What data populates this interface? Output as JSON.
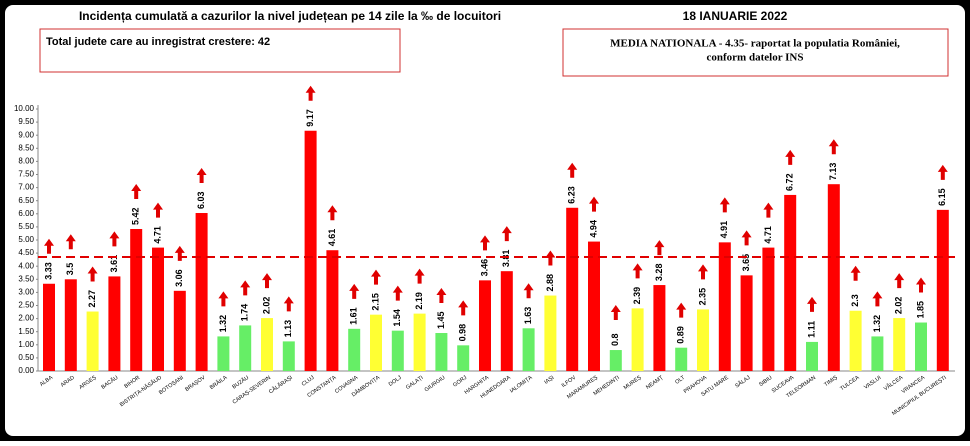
{
  "chart_data": {
    "type": "bar",
    "title": "Incidența cumulată a cazurilor la nivel județean pe 14 zile la ‰ de locuitori",
    "date": "18 IANUARIE 2022",
    "increase_note": "Total judete care au inregistrat crestere: 42",
    "mean_note": [
      "MEDIA NATIONALA - 4.35-  raportat la populatia României,",
      "conform datelor INS"
    ],
    "reference_line": 4.35,
    "categories": [
      "ALBA",
      "ARAD",
      "ARGEȘ",
      "BACĂU",
      "BIHOR",
      "BISTRIȚA-NĂSĂUD",
      "BOTOȘANI",
      "BRAȘOV",
      "BRĂILA",
      "BUZĂU",
      "CARAȘ-SEVERIN",
      "CĂLĂRAȘI",
      "CLUJ",
      "CONSTANȚA",
      "COVASNA",
      "DÂMBOVIȚA",
      "DOLJ",
      "GALAȚI",
      "GIURGIU",
      "GORJ",
      "HARGHITA",
      "HUNEDOARA",
      "IALOMIȚA",
      "IAȘI",
      "ILFOV",
      "MARAMUREȘ",
      "MEHEDINȚI",
      "MUREȘ",
      "NEAMȚ",
      "OLT",
      "PRAHOVA",
      "SATU MARE",
      "SĂLAJ",
      "SIBIU",
      "SUCEAVA",
      "TELEORMAN",
      "TIMIȘ",
      "TULCEA",
      "VASLUI",
      "VÂLCEA",
      "VRANCEA",
      "MUNICIPIUL BUCUREȘTI"
    ],
    "values": [
      3.33,
      3.5,
      2.27,
      3.61,
      5.42,
      4.71,
      3.06,
      6.03,
      1.32,
      1.74,
      2.02,
      1.13,
      9.17,
      4.61,
      1.61,
      2.15,
      1.54,
      2.19,
      1.45,
      0.98,
      3.46,
      3.81,
      1.63,
      2.88,
      6.23,
      4.94,
      0.8,
      2.39,
      3.28,
      0.89,
      2.35,
      4.91,
      3.65,
      4.71,
      6.72,
      1.11,
      7.13,
      2.3,
      1.32,
      2.02,
      1.85,
      6.15
    ],
    "colors": [
      "#ff0000",
      "#ff0000",
      "#ffff33",
      "#ff0000",
      "#ff0000",
      "#ff0000",
      "#ff0000",
      "#ff0000",
      "#66ee66",
      "#66ee66",
      "#ffff33",
      "#66ee66",
      "#ff0000",
      "#ff0000",
      "#66ee66",
      "#ffff33",
      "#66ee66",
      "#ffff33",
      "#66ee66",
      "#66ee66",
      "#ff0000",
      "#ff0000",
      "#66ee66",
      "#ffff33",
      "#ff0000",
      "#ff0000",
      "#66ee66",
      "#ffff33",
      "#ff0000",
      "#66ee66",
      "#ffff33",
      "#ff0000",
      "#ff0000",
      "#ff0000",
      "#ff0000",
      "#66ee66",
      "#ff0000",
      "#ffff33",
      "#66ee66",
      "#ffff33",
      "#66ee66",
      "#ff0000"
    ],
    "ylim": [
      0,
      10
    ],
    "yticks": [
      {
        "value": 0,
        "label": "0.00"
      },
      {
        "value": 0.5,
        "label": "0.50"
      },
      {
        "value": 1,
        "label": "1.00"
      },
      {
        "value": 1.5,
        "label": "1.50"
      },
      {
        "value": 2,
        "label": "2.00"
      },
      {
        "value": 2.5,
        "label": "2.50"
      },
      {
        "value": 3,
        "label": "3.00"
      },
      {
        "value": 3.5,
        "label": "3.50"
      },
      {
        "value": 4,
        "label": "4.00"
      },
      {
        "value": 4.5,
        "label": "4.50"
      },
      {
        "value": 5,
        "label": "5.00"
      },
      {
        "value": 5.5,
        "label": "5.50"
      },
      {
        "value": 6,
        "label": "6.00"
      },
      {
        "value": 6.5,
        "label": "6.50"
      },
      {
        "value": 7,
        "label": "7.00"
      },
      {
        "value": 7.5,
        "label": "7.50"
      },
      {
        "value": 8,
        "label": "8.00"
      },
      {
        "value": 8.5,
        "label": "8.50"
      },
      {
        "value": 9,
        "label": "9.00"
      },
      {
        "value": 9.5,
        "label": "9.50"
      },
      {
        "value": 10,
        "label": "10.00"
      }
    ]
  }
}
